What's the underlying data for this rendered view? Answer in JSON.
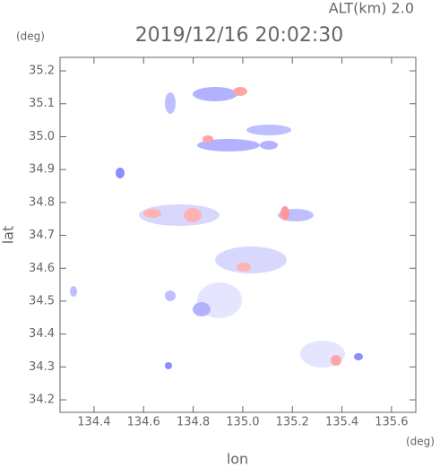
{
  "chart_data": {
    "type": "radar-map",
    "altitude_label": "ALT(km)  2.0",
    "title": "2019/12/16 20:02:30",
    "ylabel_unit": "(deg)",
    "xlabel_unit": "(deg)",
    "ylabel": "lat",
    "xlabel": "lon",
    "xlim": [
      134.263,
      135.698
    ],
    "ylim": [
      34.162,
      35.241
    ],
    "xticks": [
      134.4,
      134.6,
      134.8,
      {
        "value": 135,
        "label": "135.0"
      },
      135.2,
      135.4,
      135.6
    ],
    "yticks": [
      34.2,
      34.3,
      34.4,
      34.5,
      34.6,
      34.7,
      34.8,
      34.9,
      {
        "value": 35,
        "label": "35.0"
      },
      35.1,
      35.2
    ]
  }
}
